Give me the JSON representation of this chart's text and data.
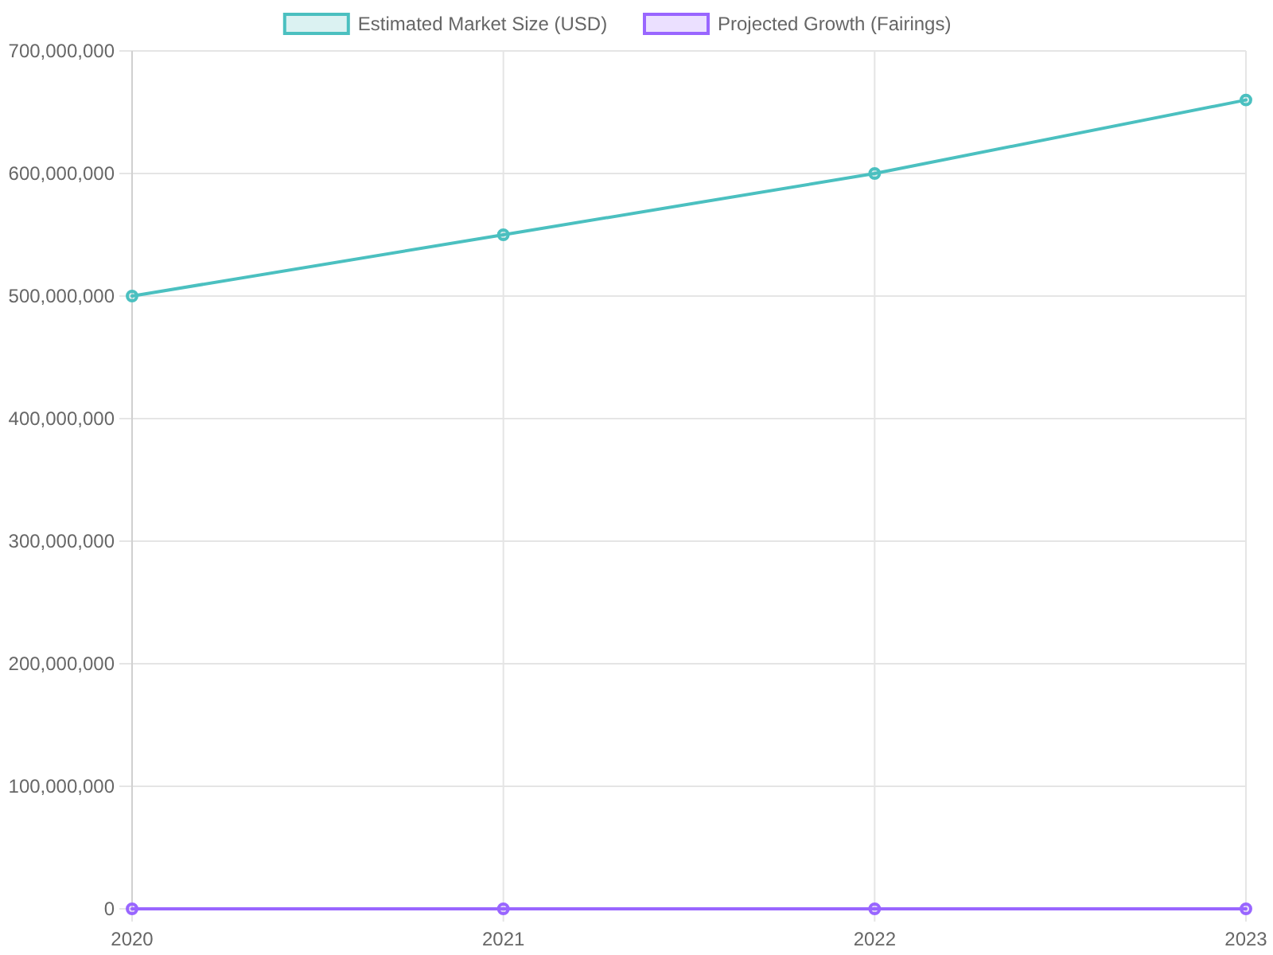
{
  "chart_data": {
    "type": "line",
    "categories": [
      "2020",
      "2021",
      "2022",
      "2023"
    ],
    "series": [
      {
        "name": "Estimated Market Size (USD)",
        "color": "#4bc0c0",
        "values": [
          500000000,
          550000000,
          600000000,
          660000000
        ]
      },
      {
        "name": "Projected Growth (Fairings)",
        "color": "#9966ff",
        "values": [
          0,
          0,
          0,
          0
        ]
      }
    ],
    "ylim": [
      0,
      700000000
    ],
    "yticks": [
      {
        "value": 0,
        "label": "0"
      },
      {
        "value": 100000000,
        "label": "100,000,000"
      },
      {
        "value": 200000000,
        "label": "200,000,000"
      },
      {
        "value": 300000000,
        "label": "300,000,000"
      },
      {
        "value": 400000000,
        "label": "400,000,000"
      },
      {
        "value": 500000000,
        "label": "500,000,000"
      },
      {
        "value": 600000000,
        "label": "600,000,000"
      },
      {
        "value": 700000000,
        "label": "700,000,000"
      }
    ],
    "grid": true,
    "legend": "top",
    "marker": "circle",
    "line_style": "solid"
  }
}
